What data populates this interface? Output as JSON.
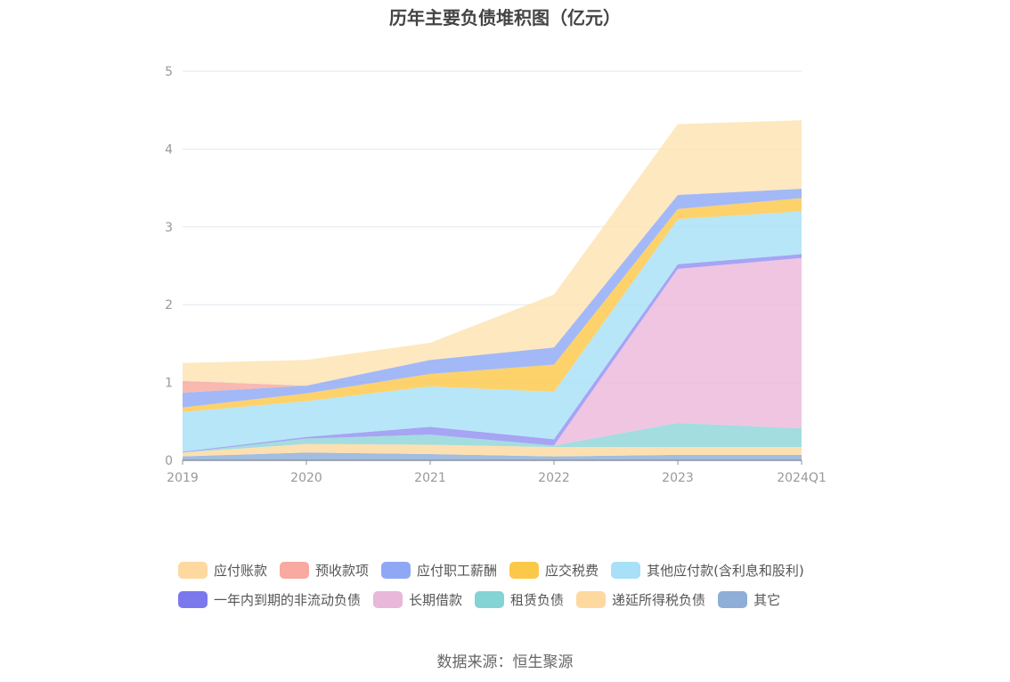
{
  "chart_data": {
    "type": "area",
    "title": "历年主要负债堆积图（亿元）",
    "x": [
      "2019",
      "2020",
      "2021",
      "2022",
      "2023",
      "2024Q1"
    ],
    "y_ticks": [
      "0",
      "1",
      "2",
      "3",
      "4",
      "5"
    ],
    "ylim": [
      0,
      5
    ],
    "grid": true,
    "legend_position": "bottom",
    "series": [
      {
        "name": "其它",
        "color": "#8eaed8",
        "values": [
          0.05,
          0.1,
          0.08,
          0.05,
          0.07,
          0.07
        ]
      },
      {
        "name": "递延所得税负债",
        "color": "#fdd9a0",
        "values": [
          0.05,
          0.11,
          0.12,
          0.12,
          0.1,
          0.1
        ]
      },
      {
        "name": "租赁负债",
        "color": "#8fd6d8",
        "values": [
          0.0,
          0.07,
          0.13,
          0.02,
          0.31,
          0.24
        ]
      },
      {
        "name": "长期借款",
        "color": "#ebb8dc",
        "values": [
          0.0,
          0.0,
          0.0,
          0.0,
          1.98,
          2.19
        ]
      },
      {
        "name": "一年内到期的非流动负债",
        "color": "#9390f2",
        "values": [
          0.01,
          0.02,
          0.1,
          0.08,
          0.06,
          0.05
        ]
      },
      {
        "name": "其他应付款(含利息和股利)",
        "color": "#a7e0f7",
        "values": [
          0.51,
          0.46,
          0.52,
          0.61,
          0.58,
          0.55
        ]
      },
      {
        "name": "应交税费",
        "color": "#fcc84a",
        "values": [
          0.06,
          0.1,
          0.16,
          0.35,
          0.13,
          0.17
        ]
      },
      {
        "name": "应付职工薪酬",
        "color": "#8fa8f5",
        "values": [
          0.19,
          0.1,
          0.18,
          0.22,
          0.18,
          0.12
        ]
      },
      {
        "name": "预收款项",
        "color": "#f8a9a0",
        "values": [
          0.15,
          0.0,
          0.0,
          0.0,
          0.0,
          0.0
        ]
      },
      {
        "name": "应付账款",
        "color": "#fee3b1",
        "values": [
          0.23,
          0.33,
          0.22,
          0.68,
          0.91,
          0.88
        ]
      }
    ]
  },
  "legend": {
    "row1": [
      {
        "label": "应付账款",
        "color": "#fdd9a0"
      },
      {
        "label": "预收款项",
        "color": "#f8a9a0"
      },
      {
        "label": "应付职工薪酬",
        "color": "#8fa8f5"
      },
      {
        "label": "应交税费",
        "color": "#fcc84a"
      },
      {
        "label": "其他应付款(含利息和股利)",
        "color": "#a7e0f7"
      }
    ],
    "row2": [
      {
        "label": "一年内到期的非流动负债",
        "color": "#7b78ee"
      },
      {
        "label": "长期借款",
        "color": "#e8b7da"
      },
      {
        "label": "租赁负债",
        "color": "#84d3d5"
      },
      {
        "label": "递延所得税负债",
        "color": "#fdd9a0"
      },
      {
        "label": "其它",
        "color": "#8eaed8"
      }
    ]
  },
  "source": "数据来源：恒生聚源"
}
